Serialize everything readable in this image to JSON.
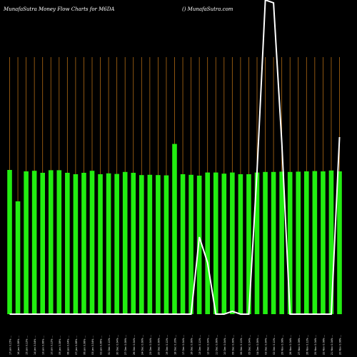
{
  "header": {
    "left": "MunafaSutra  Money Flow  Charts for M6DA",
    "right": "() MunafaSutra.com"
  },
  "colors": {
    "background": "#000000",
    "bar": "#22ee11",
    "grid": "#b06a14",
    "line": "#ffffff"
  },
  "chart_data": {
    "type": "bar",
    "title": "MunafaSutra  Money Flow  Charts for M6DA",
    "ylim": [
      0,
      100
    ],
    "values": [
      50.5,
      39.5,
      50,
      50.2,
      49.5,
      50.4,
      50.4,
      49.5,
      49,
      49.5,
      50.2,
      49,
      49.3,
      49.1,
      49.8,
      49.5,
      48.7,
      48.8,
      48.7,
      48.6,
      59.6,
      49,
      48.8,
      48.5,
      49.6,
      49.6,
      49.2,
      49.6,
      49,
      49,
      49.6,
      49.8,
      49.8,
      49.9,
      49.8,
      49.9,
      50,
      50.1,
      50,
      50.3,
      50
    ],
    "line_values": [
      0,
      0,
      0,
      0,
      0,
      0,
      0,
      0,
      0,
      0,
      0,
      0,
      0,
      0,
      0,
      0,
      0,
      0,
      0,
      0,
      0,
      0,
      0,
      27,
      18,
      0,
      0,
      1,
      0,
      0,
      50,
      110,
      109,
      60,
      0,
      0,
      0,
      0,
      0,
      0,
      62
    ],
    "categories": [
      "17 Jan 0.15% ...",
      "16 Jan 0.08% ...",
      "15 Jan 0.12% ...",
      "14 Jan 0.04% ...",
      "13 Jan 0.08% ...",
      "10 Jan 0.12% ...",
      "09 Jan 0.08% ...",
      "08 Jan 0.04% ...",
      "07 Jan 0.08% ...",
      "06 Jan 0.08% ...",
      "03 Jan 0.04% ...",
      "02 Jan 0.08% ...",
      "31 Dec 0.12% ...",
      "30 Dec 0.04% ...",
      "27 Dec 0.08% ...",
      "26 Dec 0.04% ...",
      "24 Dec 0.08% ...",
      "23 Dec 0.04% ...",
      "20 Dec 0.08% ...",
      "19 Dec 0.12% ...",
      "18 Dec 0.16% ...",
      "17 Dec 0.04% ...",
      "16 Dec 0.08% ...",
      "13 Dec 0.12% ...",
      "12 Dec 0.04% ...",
      "11 Dec 0.08% ...",
      "10 Dec 0.04% ...",
      "09 Dec 0.08% ...",
      "06 Dec 0.12% ...",
      "05 Dec 0.04% ...",
      "04 Dec 0.08% ...",
      "03 Dec 0.04% ...",
      "02 Dec 0.12% ...",
      "29 Nov 0.08% ...",
      "28 Nov 0.04% ...",
      "27 Nov 0.08% ...",
      "26 Nov 0.12% ...",
      "25 Nov 0.04% ...",
      "22 Nov 0.08% ...",
      "21 Nov 0.04% ...",
      "20 Nov 0.08% ..."
    ]
  }
}
